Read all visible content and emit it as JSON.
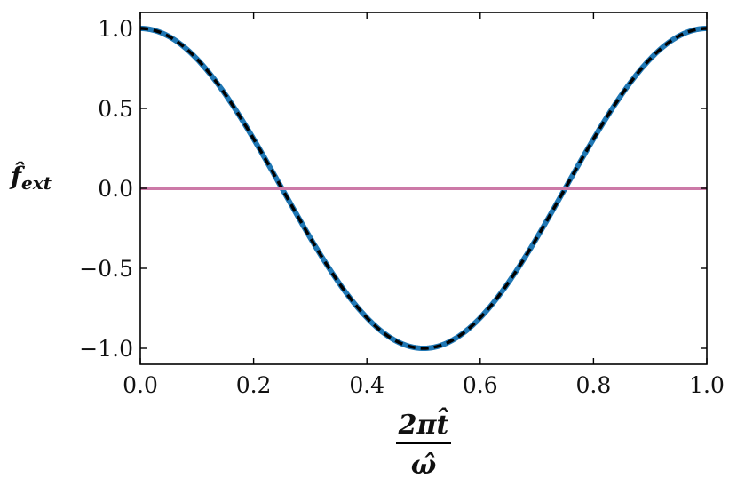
{
  "chart_data": {
    "type": "line",
    "xlabel_num": "2πt̂",
    "xlabel_den": "ω̂",
    "ylabel_main": "f̂",
    "ylabel_sub": "ext",
    "xlim": [
      0.0,
      1.0
    ],
    "ylim": [
      -1.1,
      1.1
    ],
    "x_ticks": [
      "0.0",
      "0.2",
      "0.4",
      "0.6",
      "0.8",
      "1.0"
    ],
    "y_ticks": [
      "1.0",
      "0.5",
      "0.0",
      "−0.5",
      "−1.0"
    ],
    "x_tick_values": [
      0.0,
      0.2,
      0.4,
      0.6,
      0.8,
      1.0
    ],
    "y_tick_values": [
      1.0,
      0.5,
      0.0,
      -0.5,
      -1.0
    ],
    "grid": false,
    "legend": "none",
    "series": [
      {
        "style": "solid",
        "color": "#1f77b4",
        "x": [
          0.0,
          0.05,
          0.1,
          0.15,
          0.2,
          0.25,
          0.3,
          0.35,
          0.4,
          0.45,
          0.5,
          0.55,
          0.6,
          0.65,
          0.7,
          0.75,
          0.8,
          0.85,
          0.9,
          0.95,
          1.0
        ],
        "y": [
          1.0,
          0.951,
          0.809,
          0.588,
          0.309,
          0.0,
          -0.309,
          -0.588,
          -0.809,
          -0.951,
          -1.0,
          -0.951,
          -0.809,
          -0.588,
          -0.309,
          0.0,
          0.309,
          0.588,
          0.809,
          0.951,
          1.0
        ]
      },
      {
        "style": "dashed",
        "color": "#000000",
        "x": [
          0.0,
          0.05,
          0.1,
          0.15,
          0.2,
          0.25,
          0.3,
          0.35,
          0.4,
          0.45,
          0.5,
          0.55,
          0.6,
          0.65,
          0.7,
          0.75,
          0.8,
          0.85,
          0.9,
          0.95,
          1.0
        ],
        "y": [
          1.0,
          0.951,
          0.809,
          0.588,
          0.309,
          0.0,
          -0.309,
          -0.588,
          -0.809,
          -0.951,
          -1.0,
          -0.951,
          -0.809,
          -0.588,
          -0.309,
          0.0,
          0.309,
          0.588,
          0.809,
          0.951,
          1.0
        ]
      },
      {
        "style": "solid",
        "color": "#cc79a7",
        "x": [
          0.0,
          1.0
        ],
        "y": [
          0.0,
          0.0
        ]
      }
    ]
  }
}
